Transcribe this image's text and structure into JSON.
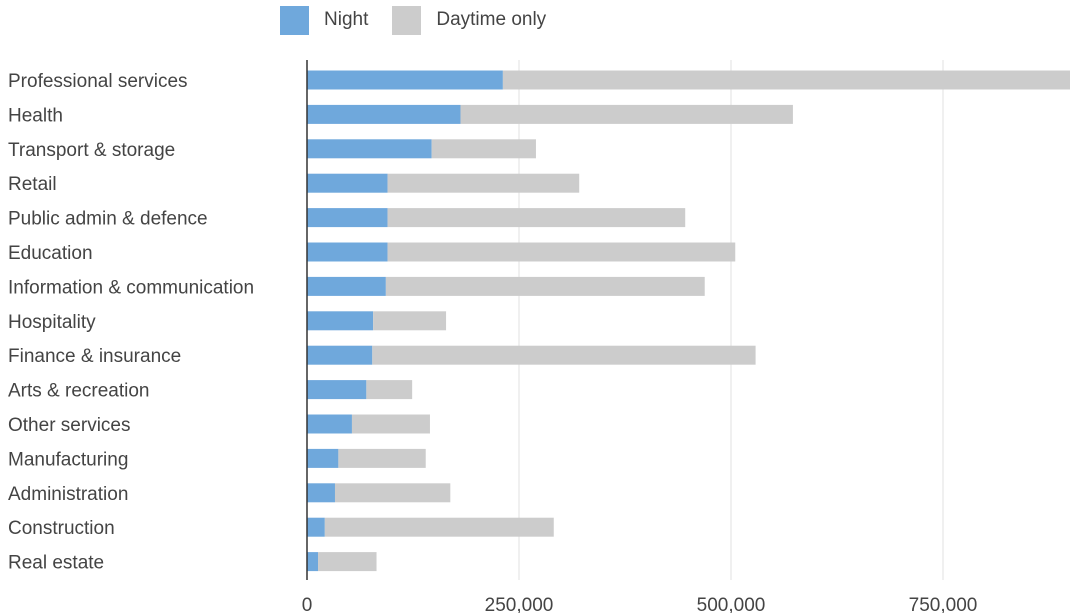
{
  "legend": {
    "night_label": "Night",
    "day_label": "Daytime only"
  },
  "colors": {
    "night": "#6fa8dc",
    "day": "#cccccc",
    "grid": "#e0e0e0",
    "axis": "#333333",
    "text": "#444444"
  },
  "chart_data": {
    "type": "bar",
    "orientation": "horizontal",
    "stacked": true,
    "categories": [
      "Professional services",
      "Health",
      "Transport & storage",
      "Retail",
      "Public admin & defence",
      "Education",
      "Information & communication",
      "Hospitality",
      "Finance & insurance",
      "Arts & recreation",
      "Other services",
      "Manufacturing",
      "Administration",
      "Construction",
      "Real estate"
    ],
    "series": [
      {
        "name": "Night",
        "values": [
          231000,
          181000,
          147000,
          95000,
          95000,
          95000,
          93000,
          78000,
          77000,
          70000,
          53000,
          37000,
          33000,
          21000,
          13000
        ]
      },
      {
        "name": "Daytime only",
        "values": [
          669000,
          392000,
          123000,
          226000,
          351000,
          410000,
          376000,
          86000,
          452000,
          54000,
          92000,
          103000,
          136000,
          270000,
          69000
        ]
      }
    ],
    "xaxis": {
      "ticks": [
        0,
        250000,
        500000,
        750000
      ],
      "tick_labels": [
        "0",
        "250,000",
        "500,000",
        "750,000"
      ],
      "range": [
        0,
        900000
      ]
    },
    "grid": true,
    "legend_position": "top"
  }
}
